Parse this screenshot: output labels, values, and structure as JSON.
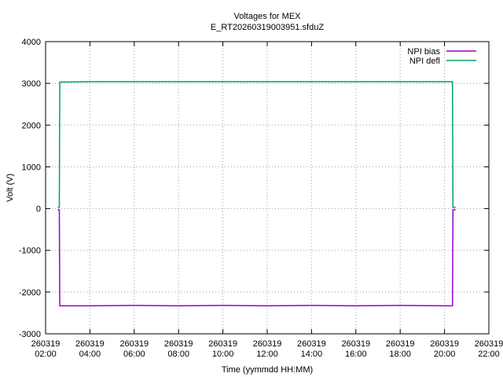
{
  "chart_data": {
    "type": "line",
    "title": "Voltages for MEX",
    "subtitle": "E_RT20260319003951.sfduZ",
    "x_label": "Time (yymmdd HH:MM)",
    "y_label": "Volt (V)",
    "x": [
      2.55,
      2.62,
      2.64,
      4,
      6,
      8,
      10,
      12,
      14,
      16,
      18,
      20,
      20.36,
      20.38,
      20.5
    ],
    "series": [
      {
        "name": "NPI bias",
        "color": "#9400d3",
        "values": [
          -30,
          -30,
          -2330,
          -2330,
          -2320,
          -2330,
          -2320,
          -2330,
          -2320,
          -2330,
          -2320,
          -2330,
          -2330,
          -30,
          -30
        ]
      },
      {
        "name": "NPI defl",
        "color": "#009e73",
        "values": [
          30,
          30,
          3030,
          3040,
          3040,
          3040,
          3040,
          3040,
          3040,
          3040,
          3040,
          3040,
          3040,
          30,
          30
        ]
      }
    ],
    "xlim": [
      2,
      22
    ],
    "xticks": [
      {
        "value": 2,
        "label": "260319\n02:00"
      },
      {
        "value": 4,
        "label": "260319\n04:00"
      },
      {
        "value": 6,
        "label": "260319\n06:00"
      },
      {
        "value": 8,
        "label": "260319\n08:00"
      },
      {
        "value": 10,
        "label": "260319\n10:00"
      },
      {
        "value": 12,
        "label": "260319\n12:00"
      },
      {
        "value": 14,
        "label": "260319\n14:00"
      },
      {
        "value": 16,
        "label": "260319\n16:00"
      },
      {
        "value": 18,
        "label": "260319\n18:00"
      },
      {
        "value": 20,
        "label": "260319\n20:00"
      },
      {
        "value": 22,
        "label": "260319\n22:00"
      }
    ],
    "ylim": [
      -3000,
      4000
    ],
    "yticks": [
      -3000,
      -2000,
      -1000,
      0,
      1000,
      2000,
      3000,
      4000
    ],
    "grid": true,
    "legend": "top-right"
  }
}
